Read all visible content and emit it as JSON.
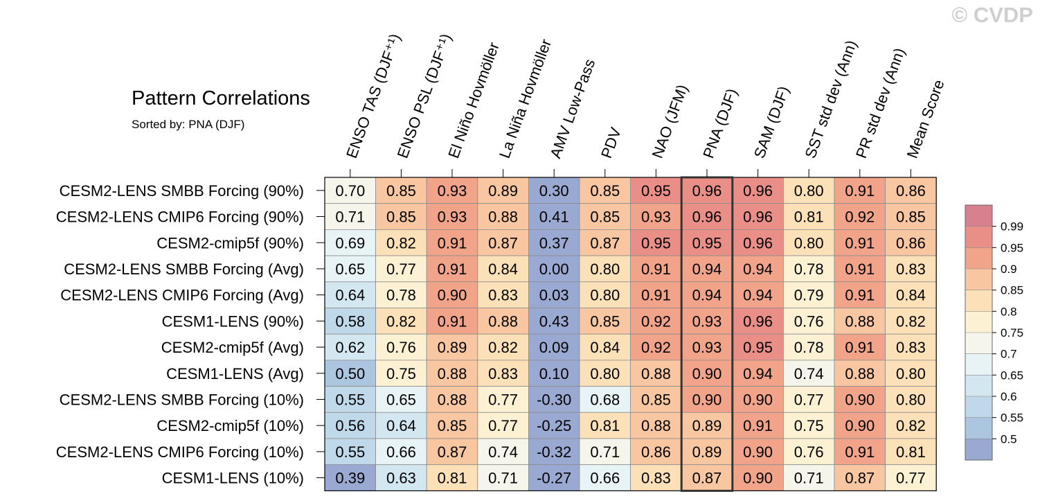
{
  "title": "Pattern Correlations",
  "subtitle": "Sorted by: PNA (DJF)",
  "watermark": "© CVDP",
  "chart_data": {
    "type": "heatmap",
    "title": "Pattern Correlations",
    "subtitle": "Sorted by: PNA (DJF)",
    "columns": [
      "ENSO TAS (DJF⁺¹)",
      "ENSO PSL (DJF⁺¹)",
      "El Niño Hovmöller",
      "La Niña Hovmöller",
      "AMV Low-Pass",
      "PDV",
      "NAO (JFM)",
      "PNA (DJF)",
      "SAM (DJF)",
      "SST std dev (Ann)",
      "PR std dev (Ann)",
      "Mean Score"
    ],
    "highlight_column": "PNA (DJF)",
    "rows": [
      "CESM2-LENS SMBB Forcing (90%)",
      "CESM2-LENS CMIP6 Forcing (90%)",
      "CESM2-cmip5f (90%)",
      "CESM2-LENS SMBB Forcing (Avg)",
      "CESM2-LENS CMIP6 Forcing (Avg)",
      "CESM1-LENS (90%)",
      "CESM2-cmip5f (Avg)",
      "CESM1-LENS (Avg)",
      "CESM2-LENS SMBB Forcing (10%)",
      "CESM2-cmip5f (10%)",
      "CESM2-LENS CMIP6 Forcing (10%)",
      "CESM1-LENS (10%)"
    ],
    "values": [
      [
        "0.70",
        "0.85",
        "0.93",
        "0.89",
        "0.30",
        "0.85",
        "0.95",
        "0.96",
        "0.96",
        "0.80",
        "0.91",
        "0.86"
      ],
      [
        "0.71",
        "0.85",
        "0.93",
        "0.88",
        "0.41",
        "0.85",
        "0.93",
        "0.96",
        "0.96",
        "0.81",
        "0.92",
        "0.85"
      ],
      [
        "0.69",
        "0.82",
        "0.91",
        "0.87",
        "0.37",
        "0.87",
        "0.95",
        "0.95",
        "0.96",
        "0.80",
        "0.91",
        "0.86"
      ],
      [
        "0.65",
        "0.77",
        "0.91",
        "0.84",
        "0.00",
        "0.80",
        "0.91",
        "0.94",
        "0.94",
        "0.78",
        "0.91",
        "0.83"
      ],
      [
        "0.64",
        "0.78",
        "0.90",
        "0.83",
        "0.03",
        "0.80",
        "0.91",
        "0.94",
        "0.94",
        "0.79",
        "0.91",
        "0.84"
      ],
      [
        "0.58",
        "0.82",
        "0.91",
        "0.88",
        "0.43",
        "0.85",
        "0.92",
        "0.93",
        "0.96",
        "0.76",
        "0.88",
        "0.82"
      ],
      [
        "0.62",
        "0.76",
        "0.89",
        "0.82",
        "0.09",
        "0.84",
        "0.92",
        "0.93",
        "0.95",
        "0.78",
        "0.91",
        "0.83"
      ],
      [
        "0.50",
        "0.75",
        "0.88",
        "0.83",
        "0.10",
        "0.80",
        "0.88",
        "0.90",
        "0.94",
        "0.74",
        "0.88",
        "0.80"
      ],
      [
        "0.55",
        "0.65",
        "0.88",
        "0.77",
        "-0.30",
        "0.68",
        "0.85",
        "0.90",
        "0.90",
        "0.77",
        "0.90",
        "0.80"
      ],
      [
        "0.56",
        "0.64",
        "0.85",
        "0.77",
        "-0.25",
        "0.81",
        "0.88",
        "0.89",
        "0.91",
        "0.75",
        "0.90",
        "0.82"
      ],
      [
        "0.55",
        "0.66",
        "0.87",
        "0.74",
        "-0.32",
        "0.71",
        "0.86",
        "0.89",
        "0.90",
        "0.76",
        "0.91",
        "0.81"
      ],
      [
        "0.39",
        "0.63",
        "0.81",
        "0.71",
        "-0.27",
        "0.66",
        "0.83",
        "0.87",
        "0.90",
        "0.71",
        "0.87",
        "0.77"
      ]
    ],
    "colorbar": {
      "levels": [
        "0.5",
        "0.55",
        "0.6",
        "0.65",
        "0.7",
        "0.75",
        "0.8",
        "0.85",
        "0.9",
        "0.95",
        "0.99"
      ],
      "colors": [
        "#9aa9d2",
        "#adc6e0",
        "#bfd9ea",
        "#d3e7f1",
        "#e8f3f5",
        "#f5f5ec",
        "#fcf1d2",
        "#fbe0b8",
        "#f8c6a0",
        "#f1a48a",
        "#ea8f87",
        "#d9808f"
      ]
    }
  }
}
